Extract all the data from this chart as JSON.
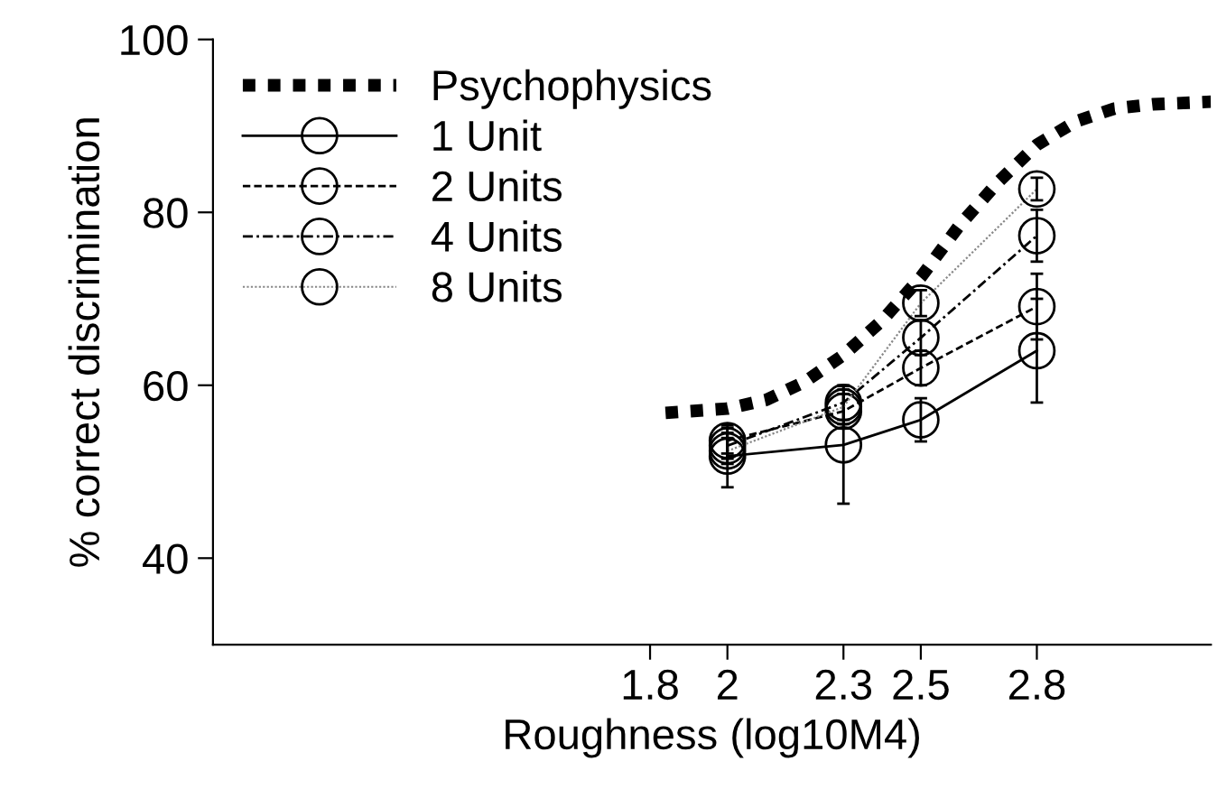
{
  "chart_data": {
    "type": "line",
    "xlabel": "Roughness (log10M4)",
    "ylabel": "% correct discrimination",
    "xlim": [
      0.67,
      3.25
    ],
    "xticks": [
      1.8,
      2,
      2.3,
      2.5,
      2.8
    ],
    "ylim": [
      30,
      100
    ],
    "yticks": [
      40,
      60,
      80,
      100
    ],
    "grid": false,
    "legend": "top left",
    "series": [
      {
        "name": "Psychophysics",
        "color": "#000000",
        "line_style": "dotted",
        "marker": "none",
        "x": [
          1.84,
          2.0,
          2.1,
          2.2,
          2.3,
          2.4,
          2.5,
          2.6,
          2.7,
          2.8,
          2.9,
          3.0,
          3.1,
          3.25
        ],
        "values": [
          56.8,
          57.3,
          58.3,
          60.4,
          63.5,
          67.5,
          72.5,
          78.5,
          83.5,
          87.8,
          90.5,
          92,
          92.5,
          92.8
        ]
      },
      {
        "name": "1 Unit",
        "color": "#000000",
        "line_style": "solid",
        "marker": "circle",
        "x": [
          2,
          2.3,
          2.5,
          2.8
        ],
        "values": [
          51.8,
          53.1,
          56.0,
          64.0
        ],
        "errors": [
          3.6,
          6.8,
          2.5,
          6.0
        ]
      },
      {
        "name": "2 Units",
        "color": "#000000",
        "line_style": "dashed",
        "marker": "circle",
        "x": [
          2,
          2.3,
          2.5,
          2.8
        ],
        "values": [
          53.6,
          57.0,
          62.0,
          69.1
        ],
        "errors": [
          1.5,
          2.0,
          2.0,
          3.8
        ]
      },
      {
        "name": "4 Units",
        "color": "#000000",
        "line_style": "dashdot",
        "marker": "circle",
        "x": [
          2,
          2.3,
          2.5,
          2.8
        ],
        "values": [
          53.0,
          58.0,
          65.5,
          77.3
        ],
        "errors": [
          1.5,
          2.0,
          2.0,
          3.0
        ]
      },
      {
        "name": "8 Units",
        "color": "#888888",
        "line_style": "dotted",
        "marker": "circle",
        "x": [
          2,
          2.3,
          2.5,
          2.8
        ],
        "values": [
          52.4,
          57.5,
          69.5,
          82.7
        ],
        "errors": [
          1.5,
          2.0,
          1.5,
          1.3
        ]
      }
    ]
  }
}
